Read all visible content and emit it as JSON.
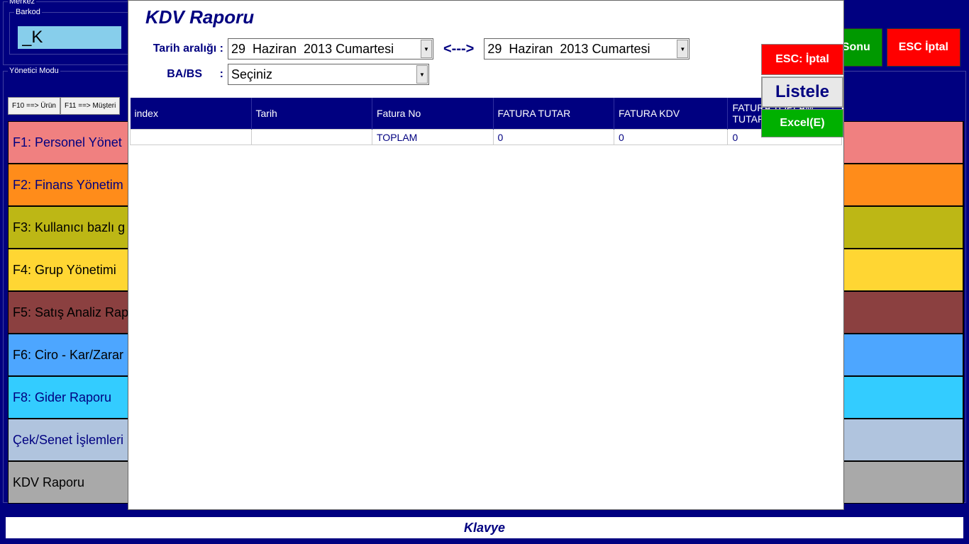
{
  "merkez": {
    "label": "Merkez"
  },
  "barkod": {
    "label": "Barkod",
    "value": "_K"
  },
  "yonetici": {
    "label": "Yönetici Modu"
  },
  "tabs": {
    "f10": "F10 ==> Ürün",
    "f11": "F11 ==> Müşteri"
  },
  "sideButtons": [
    {
      "label": "F1: Personel Yönet",
      "bg": "#f08080",
      "fg": "#000080"
    },
    {
      "label": "F2: Finans  Yönetim",
      "bg": "#ff8c1a",
      "fg": "#000080"
    },
    {
      "label": "F3: Kullanıcı bazlı g",
      "bg": "#bdb715",
      "fg": "#000000"
    },
    {
      "label": "F4: Grup  Yönetimi",
      "bg": "#ffd633",
      "fg": "#000000"
    },
    {
      "label": "F5: Satış Analiz Rap",
      "bg": "#8b4040",
      "fg": "#000000"
    },
    {
      "label": "F6: Ciro - Kar/Zarar",
      "bg": "#4da6ff",
      "fg": "#000000"
    },
    {
      "label": "F8: Gider Raporu",
      "bg": "#33ccff",
      "fg": "#000080"
    },
    {
      "label": "Çek/Senet İşlemleri",
      "bg": "#b0c4de",
      "fg": "#000080"
    },
    {
      "label": "KDV Raporu",
      "bg": "#a9a9a9",
      "fg": "#000000"
    }
  ],
  "topRight": {
    "sonu": "Sonu",
    "esc": "ESC İptal"
  },
  "bottomBar": "Klavye",
  "modal": {
    "title": "KDV Raporu",
    "filters": {
      "tarihLabel": "Tarih aralığı  :",
      "date1": "29  Haziran  2013 Cumartesi",
      "arrow": "<--->",
      "date2": "29  Haziran  2013 Cumartesi",
      "babsLabel": "BA/BS",
      "colon": ":",
      "babsValue": "Seçiniz"
    },
    "buttons": {
      "iptal": "ESC: İptal",
      "listele": "Listele",
      "excel": "Excel(E)"
    },
    "grid": {
      "headers": [
        "index",
        "Tarih",
        "Fatura No",
        "FATURA TUTAR",
        "FATURA KDV",
        "FATURA TOPLAM TUTAR"
      ],
      "row": [
        "",
        "",
        "TOPLAM",
        "0",
        "0",
        "0"
      ]
    }
  }
}
